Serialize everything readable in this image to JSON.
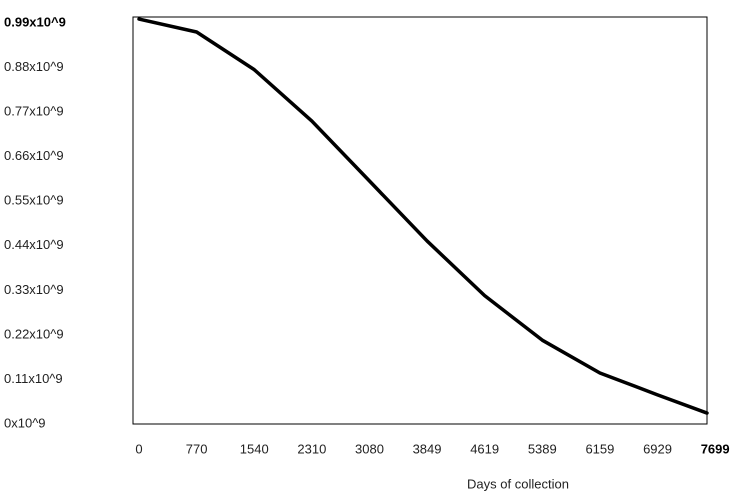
{
  "chart_data": {
    "type": "line",
    "x_label": "Days of collection",
    "x": [
      0,
      770,
      1540,
      2310,
      3080,
      3849,
      4619,
      5389,
      6159,
      6929,
      7590
    ],
    "series": [
      {
        "color": "#000000",
        "values": [
          1000000000,
          968000000,
          875000000,
          748000000,
          600000000,
          452000000,
          317000000,
          207000000,
          126000000,
          72000000,
          27000000
        ]
      }
    ],
    "xlim": [
      -80,
      7590
    ],
    "xticks": [
      0,
      770,
      1540,
      2310,
      3080,
      3849,
      4619,
      5389,
      6159,
      6929,
      7699
    ],
    "ylim": [
      0,
      1005000000
    ],
    "yticks": [
      {
        "value": 0,
        "label": "0x10^9"
      },
      {
        "value": 110000000,
        "label": "0.11x10^9"
      },
      {
        "value": 220000000,
        "label": "0.22x10^9"
      },
      {
        "value": 330000000,
        "label": "0.33x10^9"
      },
      {
        "value": 440000000,
        "label": "0.44x10^9"
      },
      {
        "value": 550000000,
        "label": "0.55x10^9"
      },
      {
        "value": 660000000,
        "label": "0.66x10^9"
      },
      {
        "value": 770000000,
        "label": "0.77x10^9"
      },
      {
        "value": 880000000,
        "label": "0.88x10^9"
      },
      {
        "value": 990000000,
        "label": "0.99x10^9"
      }
    ],
    "grid": false
  }
}
